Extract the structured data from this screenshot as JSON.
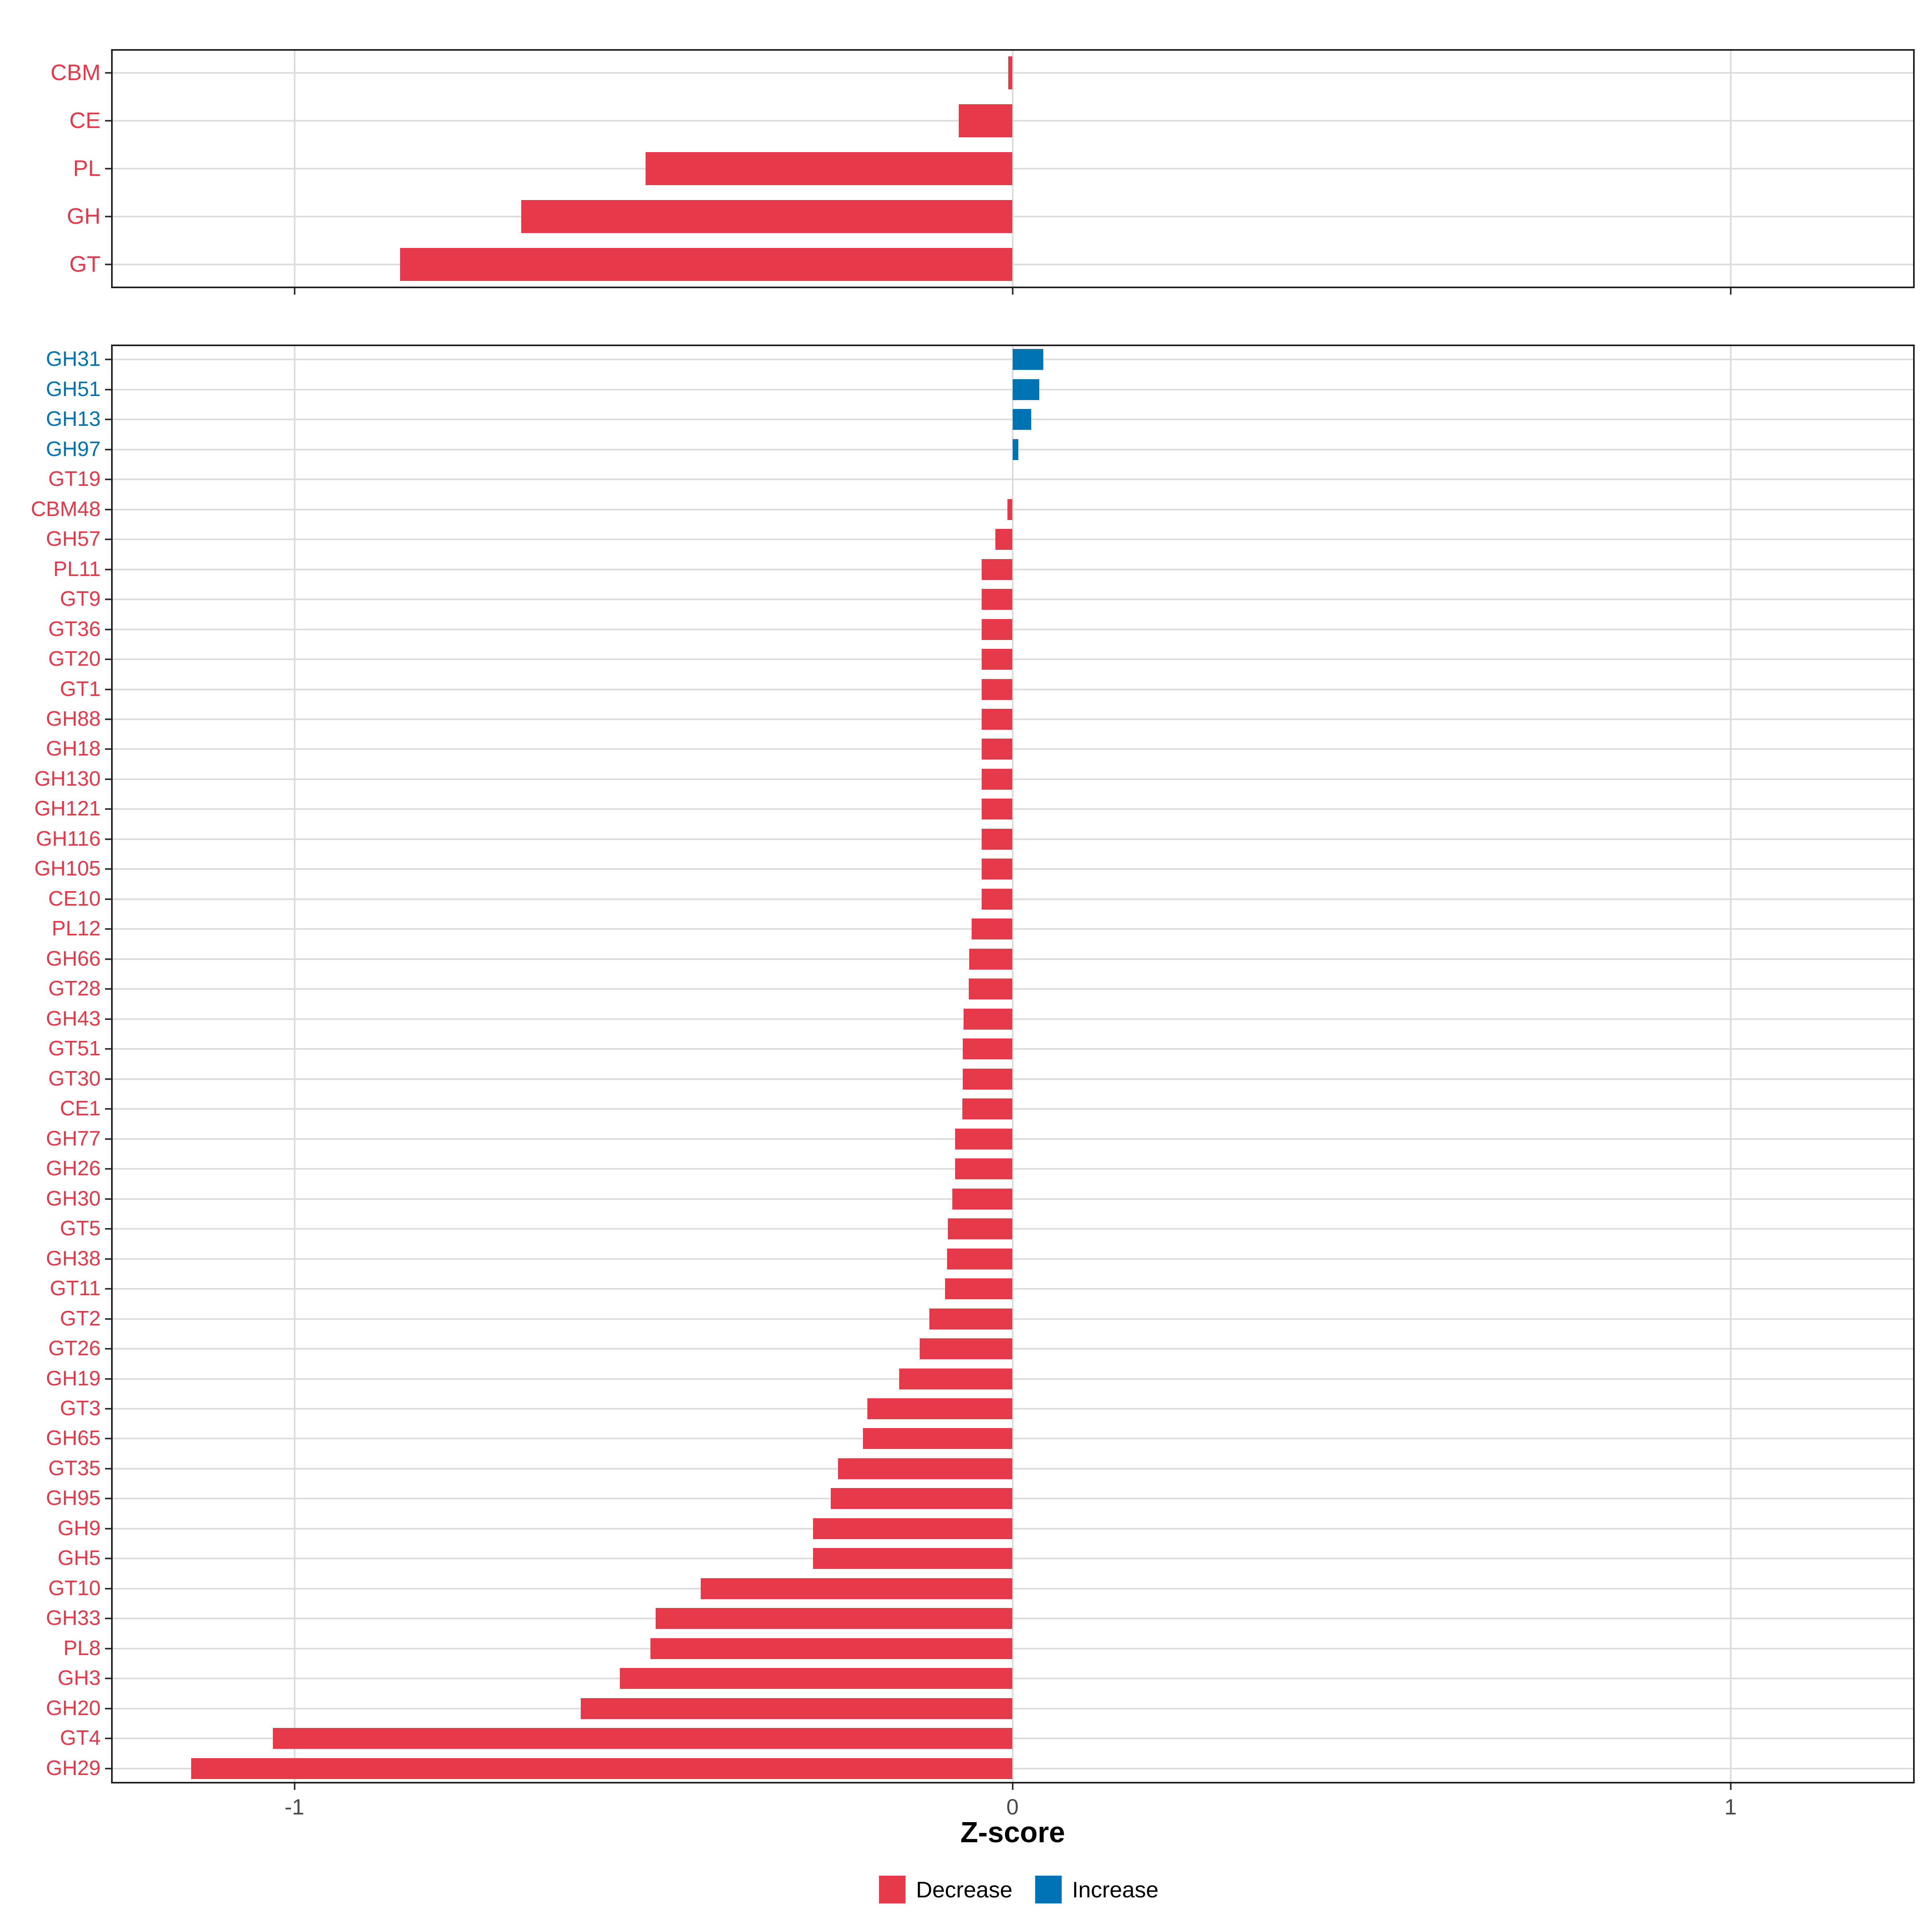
{
  "axis": {
    "xlabel": "Z-score",
    "ticks": [
      -1,
      0,
      1
    ],
    "tick_labels": [
      "-1",
      "0",
      "1"
    ],
    "xlim": [
      -1.255,
      1.256
    ]
  },
  "legend": {
    "items": [
      {
        "label": "Decrease",
        "key": "decrease"
      },
      {
        "label": "Increase",
        "key": "increase"
      }
    ]
  },
  "colors": {
    "decrease": "#E53849",
    "increase": "#0073B4",
    "grid": "#DCDCDC",
    "border": "#1E1E1E",
    "tick": "#333333",
    "axis_text": "#4A4A4A",
    "background": "#FFFFFF"
  },
  "chart_data": [
    {
      "type": "bar",
      "orientation": "horizontal",
      "panel": "cazyme-classes",
      "title": "",
      "xlabel": "Z-score",
      "grid": "on",
      "xlim": [
        -1.255,
        1.256
      ],
      "categories": [
        "CBM",
        "CE",
        "PL",
        "GH",
        "GT"
      ],
      "values": [
        -0.006,
        -0.075,
        -0.511,
        -0.684,
        -0.853
      ],
      "direction": [
        "decrease",
        "decrease",
        "decrease",
        "decrease",
        "decrease"
      ]
    },
    {
      "type": "bar",
      "orientation": "horizontal",
      "panel": "cazyme-families",
      "title": "",
      "xlabel": "Z-score",
      "grid": "on",
      "xlim": [
        -1.255,
        1.256
      ],
      "categories": [
        "GH31",
        "GH51",
        "GH13",
        "GH97",
        "GT19",
        "CBM48",
        "GH57",
        "PL11",
        "GT9",
        "GT36",
        "GT20",
        "GT1",
        "GH88",
        "GH18",
        "GH130",
        "GH121",
        "GH116",
        "GH105",
        "CE10",
        "PL12",
        "GH66",
        "GT28",
        "GH43",
        "GT51",
        "GT30",
        "CE1",
        "GH77",
        "GH26",
        "GH30",
        "GT5",
        "GH38",
        "GT11",
        "GT2",
        "GT26",
        "GH19",
        "GT3",
        "GH65",
        "GT35",
        "GH95",
        "GH9",
        "GH5",
        "GT10",
        "GH33",
        "PL8",
        "GH3",
        "GH20",
        "GT4",
        "GH29"
      ],
      "values": [
        0.043,
        0.037,
        0.026,
        0.008,
        0.0,
        -0.007,
        -0.024,
        -0.043,
        -0.043,
        -0.043,
        -0.043,
        -0.043,
        -0.043,
        -0.043,
        -0.043,
        -0.043,
        -0.043,
        -0.043,
        -0.043,
        -0.057,
        -0.06,
        -0.061,
        -0.068,
        -0.069,
        -0.069,
        -0.07,
        -0.08,
        -0.08,
        -0.084,
        -0.09,
        -0.091,
        -0.094,
        -0.116,
        -0.129,
        -0.158,
        -0.202,
        -0.208,
        -0.243,
        -0.253,
        -0.278,
        -0.278,
        -0.434,
        -0.497,
        -0.504,
        -0.547,
        -0.601,
        -1.03,
        -1.144
      ],
      "direction": [
        "increase",
        "increase",
        "increase",
        "increase",
        "decrease",
        "decrease",
        "decrease",
        "decrease",
        "decrease",
        "decrease",
        "decrease",
        "decrease",
        "decrease",
        "decrease",
        "decrease",
        "decrease",
        "decrease",
        "decrease",
        "decrease",
        "decrease",
        "decrease",
        "decrease",
        "decrease",
        "decrease",
        "decrease",
        "decrease",
        "decrease",
        "decrease",
        "decrease",
        "decrease",
        "decrease",
        "decrease",
        "decrease",
        "decrease",
        "decrease",
        "decrease",
        "decrease",
        "decrease",
        "decrease",
        "decrease",
        "decrease",
        "decrease",
        "decrease",
        "decrease",
        "decrease",
        "decrease",
        "decrease",
        "decrease"
      ]
    }
  ]
}
